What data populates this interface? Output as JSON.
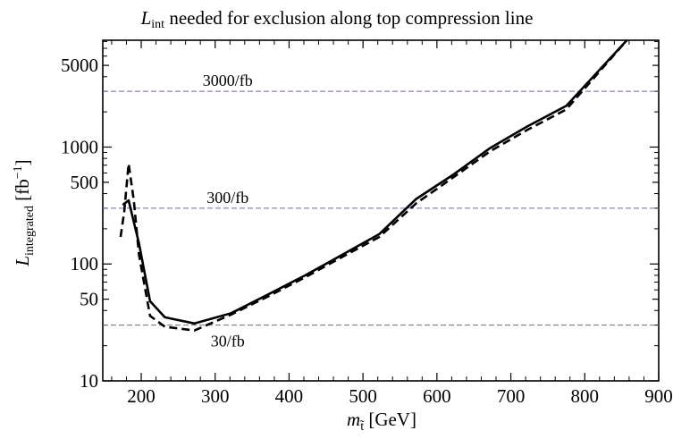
{
  "chart_data": {
    "type": "line",
    "title": {
      "sym": "L",
      "sub": "int",
      "rest": " needed for exclusion along top compression line"
    },
    "xlabel": {
      "sym": "m",
      "sub": "t̃",
      "rest": " [GeV]"
    },
    "ylabel": {
      "sym": "L",
      "sub": "integrated",
      "rest": " [fb",
      "sup": "−1",
      "end": "]"
    },
    "xlim": [
      148,
      900
    ],
    "ylim": [
      10,
      8200
    ],
    "y_scale": "log",
    "grid": false,
    "x_ticks": [
      200,
      300,
      400,
      500,
      600,
      700,
      800,
      900
    ],
    "x_tick_labels": [
      "200",
      "300",
      "400",
      "500",
      "600",
      "700",
      "800",
      "900"
    ],
    "y_ticks": [
      10,
      50,
      100,
      500,
      1000,
      5000
    ],
    "y_tick_labels": [
      "10",
      "50",
      "100",
      "500",
      "1000",
      "5000"
    ],
    "reference_lines": [
      {
        "value": 3000,
        "label": "3000/fb",
        "label_x": 317,
        "label_pos": "above"
      },
      {
        "value": 300,
        "label": "300/fb",
        "label_x": 317,
        "label_pos": "above"
      },
      {
        "value": 30,
        "label": "30/fb",
        "label_x": 317,
        "label_pos": "below"
      }
    ],
    "series": [
      {
        "style": "solid",
        "color": "#000000",
        "x": [
          175,
          183,
          197,
          212,
          232,
          272,
          322,
          372,
          422,
          472,
          522,
          572,
          622,
          672,
          722,
          775,
          857
        ],
        "y": [
          320,
          350,
          150,
          48,
          35,
          31,
          38,
          55,
          80,
          120,
          180,
          360,
          580,
          980,
          1500,
          2250,
          8200
        ]
      },
      {
        "style": "dashed",
        "color": "#000000",
        "x": [
          172,
          177,
          183,
          190,
          197,
          212,
          232,
          272,
          322,
          372,
          422,
          472,
          522,
          572,
          622,
          672,
          722,
          775,
          857
        ],
        "y": [
          170,
          280,
          720,
          350,
          120,
          36,
          29,
          27,
          37,
          53,
          77,
          115,
          170,
          330,
          550,
          920,
          1400,
          2100,
          8200
        ]
      }
    ],
    "colors": {
      "reference_line": "#6b6bab",
      "frame": "#000000"
    }
  }
}
